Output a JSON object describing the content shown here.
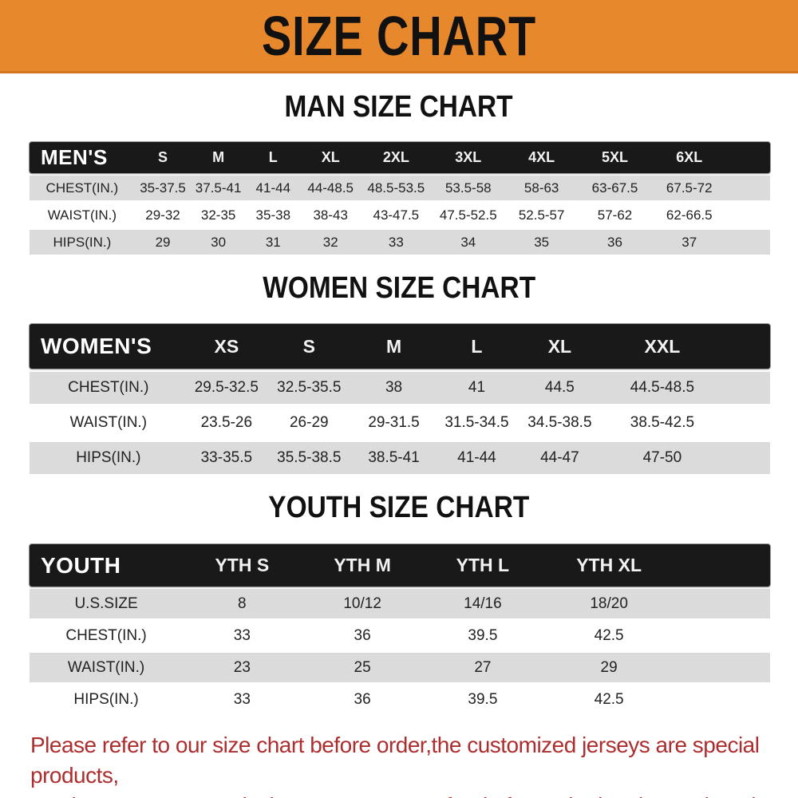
{
  "banner": {
    "title": "SIZE CHART"
  },
  "colors": {
    "banner_bg": "#E8882C",
    "header_bg": "#191919",
    "stripe": "#DBDBDB",
    "note_red": "#AC2E2E"
  },
  "sections": [
    {
      "heading": "MAN SIZE CHART",
      "table": {
        "header_label": "MEN'S",
        "columns": [
          "S",
          "M",
          "L",
          "XL",
          "2XL",
          "3XL",
          "4XL",
          "5XL",
          "6XL"
        ],
        "rows": [
          {
            "label": "CHEST(IN.)",
            "values": [
              "35-37.5",
              "37.5-41",
              "41-44",
              "44-48.5",
              "48.5-53.5",
              "53.5-58",
              "58-63",
              "63-67.5",
              "67.5-72"
            ]
          },
          {
            "label": "WAIST(IN.)",
            "values": [
              "29-32",
              "32-35",
              "35-38",
              "38-43",
              "43-47.5",
              "47.5-52.5",
              "52.5-57",
              "57-62",
              "62-66.5"
            ]
          },
          {
            "label": "HIPS(IN.)",
            "values": [
              "29",
              "30",
              "31",
              "32",
              "33",
              "34",
              "35",
              "36",
              "37"
            ]
          }
        ]
      }
    },
    {
      "heading": "WOMEN SIZE CHART",
      "table": {
        "header_label": "WOMEN'S",
        "columns": [
          "XS",
          "S",
          "M",
          "L",
          "XL",
          "XXL"
        ],
        "rows": [
          {
            "label": "CHEST(IN.)",
            "values": [
              "29.5-32.5",
              "32.5-35.5",
              "38",
              "41",
              "44.5",
              "44.5-48.5"
            ]
          },
          {
            "label": "WAIST(IN.)",
            "values": [
              "23.5-26",
              "26-29",
              "29-31.5",
              "31.5-34.5",
              "34.5-38.5",
              "38.5-42.5"
            ]
          },
          {
            "label": "HIPS(IN.)",
            "values": [
              "33-35.5",
              "35.5-38.5",
              "38.5-41",
              "41-44",
              "44-47",
              "47-50"
            ]
          }
        ]
      }
    },
    {
      "heading": "YOUTH SIZE CHART",
      "table": {
        "header_label": "YOUTH",
        "columns": [
          "YTH S",
          "YTH M",
          "YTH L",
          "YTH XL"
        ],
        "rows": [
          {
            "label": "U.S.SIZE",
            "values": [
              "8",
              "10/12",
              "14/16",
              "18/20"
            ]
          },
          {
            "label": "CHEST(IN.)",
            "values": [
              "33",
              "36",
              "39.5",
              "42.5"
            ]
          },
          {
            "label": "WAIST(IN.)",
            "values": [
              "23",
              "25",
              "27",
              "29"
            ]
          },
          {
            "label": "HIPS(IN.)",
            "values": [
              "33",
              "36",
              "39.5",
              "42.5"
            ]
          }
        ]
      }
    }
  ],
  "footer_note": {
    "lines": [
      "Please refer to our size chart before order,the customized jerseys are special products,",
      "we don't accept cancel, change, teturn or refund after order has been placed!"
    ]
  }
}
